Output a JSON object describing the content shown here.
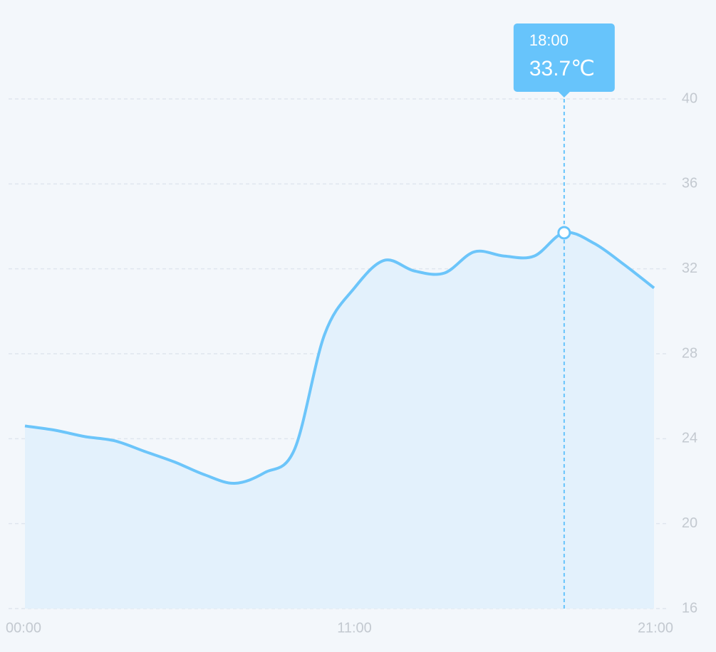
{
  "chart_data": {
    "type": "line",
    "categories": [
      "00:00",
      null,
      null,
      null,
      null,
      null,
      null,
      null,
      null,
      null,
      null,
      "11:00",
      null,
      null,
      null,
      null,
      null,
      null,
      null,
      null,
      null,
      "21:00"
    ],
    "series": [
      {
        "color": "#6cc5fa",
        "values": [
          24.6,
          24.4,
          24.1,
          23.9,
          23.4,
          22.9,
          22.3,
          21.9,
          22.4,
          23.5,
          28.9,
          31.1,
          32.4,
          31.9,
          31.8,
          32.8,
          32.6,
          32.6,
          33.7,
          33.2,
          32.2,
          31.1
        ]
      }
    ],
    "area_color": "#e3f1fc",
    "ylim": [
      16,
      40
    ],
    "yticks": [
      16,
      20,
      24,
      28,
      32,
      36,
      40
    ],
    "grid": true,
    "tooltip": {
      "label": "18:00",
      "value": 33.7,
      "value_label": "33.7℃",
      "color": "#67c4fb"
    }
  }
}
